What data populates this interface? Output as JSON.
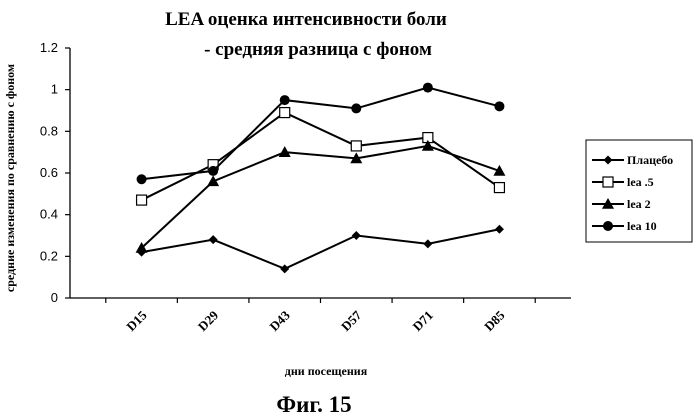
{
  "figure": {
    "caption": "Фиг. 15"
  },
  "chart_data": {
    "type": "line",
    "title_line1": "LEA оценка интенсивности боли",
    "title_line2": "- средняя разница с фоном",
    "xlabel": "дни посещения",
    "ylabel": "средние изменения по сравнению с фоном",
    "categories": [
      "D15",
      "D29",
      "D43",
      "D57",
      "D71",
      "D85"
    ],
    "yticks": [
      "0",
      "0.2",
      "0.4",
      "0.6",
      "0.8",
      "1",
      "1.2"
    ],
    "ylim": [
      0,
      1.2
    ],
    "grid": false,
    "legend_position": "right",
    "series": [
      {
        "name": "Плацебо",
        "marker": "diamond",
        "values": [
          0.22,
          0.28,
          0.14,
          0.3,
          0.26,
          0.33
        ]
      },
      {
        "name": "lea .5",
        "marker": "open-square",
        "values": [
          0.47,
          0.64,
          0.89,
          0.73,
          0.77,
          0.53
        ]
      },
      {
        "name": "lea 2",
        "marker": "triangle",
        "values": [
          0.24,
          0.56,
          0.7,
          0.67,
          0.73,
          0.61
        ]
      },
      {
        "name": "lea 10",
        "marker": "circle",
        "values": [
          0.57,
          0.61,
          0.95,
          0.91,
          1.01,
          0.92
        ]
      }
    ]
  }
}
